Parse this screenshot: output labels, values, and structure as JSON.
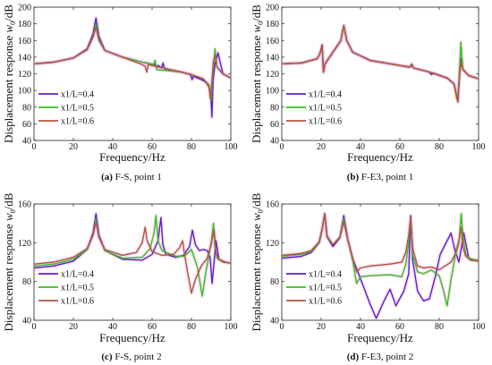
{
  "colors": {
    "s1": "#5b1fd0",
    "s2": "#35c11a",
    "s3": "#b5533b"
  },
  "chart_data": [
    {
      "type": "line",
      "caption_letter": "(a)",
      "caption_text": " F-S, point 1",
      "xlabel": "Frequency/Hz",
      "ylabel": "Displacement response",
      "ylabel_sym": "w",
      "ylabel_sub": "0",
      "ylabel_unit": "/dB",
      "xlim": [
        0,
        100
      ],
      "ylim": [
        40,
        200
      ],
      "xticks": [
        "0",
        "20",
        "40",
        "60",
        "80",
        "100"
      ],
      "yticks": [
        "40",
        "60",
        "80",
        "100",
        "120",
        "140",
        "160",
        "180",
        "200"
      ],
      "legend_position": "bottom-left",
      "series": [
        {
          "name": "x1/L=0.4",
          "color": "#5b1fd0",
          "x": [
            0,
            10,
            20,
            27,
            30,
            31.5,
            33,
            36,
            45,
            55,
            61.5,
            62.3,
            63,
            64.8,
            65.6,
            66.4,
            75,
            79.5,
            80.3,
            81,
            86,
            88.5,
            89.8,
            90.4,
            91,
            92,
            93.5,
            96,
            100
          ],
          "y": [
            132,
            134,
            139,
            150,
            168,
            187,
            165,
            148,
            140,
            134,
            131,
            128,
            130,
            127,
            133,
            126,
            122,
            119,
            113,
            117,
            112,
            108,
            95,
            68,
            112,
            132,
            145,
            120,
            115
          ]
        },
        {
          "name": "x1/L=0.5",
          "color": "#35c11a",
          "x": [
            0,
            10,
            20,
            27,
            30,
            31.5,
            33,
            36,
            45,
            55,
            60.8,
            61.5,
            62.3,
            75,
            80,
            86,
            89,
            90,
            90.6,
            91.3,
            92,
            93,
            96,
            100
          ],
          "y": [
            132,
            134,
            139,
            149,
            165,
            180,
            162,
            148,
            140,
            134,
            131,
            136,
            125,
            122,
            119,
            114,
            106,
            88,
            110,
            130,
            150,
            128,
            120,
            115
          ]
        },
        {
          "name": "x1/L=0.6",
          "color": "#b5533b",
          "x": [
            0,
            10,
            20,
            27,
            30,
            31.5,
            33,
            36,
            45,
            54,
            56.5,
            57.3,
            58,
            75,
            80,
            86,
            89,
            89.6,
            90.4,
            91.2,
            92,
            93,
            96,
            100
          ],
          "y": [
            132,
            134,
            139,
            149,
            164,
            176,
            160,
            148,
            140,
            132,
            129,
            122,
            131,
            122,
            119,
            114,
            104,
            90,
            112,
            135,
            142,
            128,
            120,
            115
          ]
        }
      ]
    },
    {
      "type": "line",
      "caption_letter": "(b)",
      "caption_text": " F-E3, point 1",
      "xlabel": "Frequency/Hz",
      "ylabel": "Displacement response",
      "ylabel_sym": "w",
      "ylabel_sub": "0",
      "ylabel_unit": "/dB",
      "xlim": [
        0,
        100
      ],
      "ylim": [
        40,
        200
      ],
      "xticks": [
        "0",
        "20",
        "40",
        "60",
        "80",
        "100"
      ],
      "yticks": [
        "40",
        "60",
        "80",
        "100",
        "120",
        "140",
        "160",
        "180",
        "200"
      ],
      "legend_position": "bottom-left",
      "series": [
        {
          "name": "x1/L=0.4",
          "color": "#5b1fd0",
          "x": [
            0,
            10,
            18,
            19.5,
            20.5,
            21.2,
            22,
            26,
            30,
            31.5,
            33,
            36,
            45,
            60,
            65,
            66,
            67,
            75,
            76,
            77,
            84,
            87.5,
            88.8,
            89.5,
            90.2,
            91,
            92,
            95,
            100
          ],
          "y": [
            132,
            133,
            138,
            145,
            155,
            122,
            132,
            146,
            160,
            178,
            160,
            146,
            136,
            130,
            128,
            130,
            127,
            122,
            119,
            121,
            115,
            108,
            95,
            88,
            115,
            138,
            125,
            118,
            114
          ]
        },
        {
          "name": "x1/L=0.5",
          "color": "#35c11a",
          "x": [
            0,
            10,
            18,
            19.5,
            20.5,
            21.2,
            22,
            26,
            30,
            31.5,
            33,
            36,
            45,
            60,
            65,
            66,
            67,
            75,
            84,
            87.5,
            88.8,
            89.5,
            90.2,
            91,
            92,
            95,
            100
          ],
          "y": [
            132,
            133,
            138,
            145,
            153,
            123,
            132,
            146,
            160,
            178,
            160,
            146,
            136,
            130,
            128,
            131,
            127,
            122,
            115,
            108,
            96,
            90,
            118,
            158,
            126,
            118,
            114
          ]
        },
        {
          "name": "x1/L=0.6",
          "color": "#b5533b",
          "x": [
            0,
            10,
            18,
            19.5,
            20.5,
            21.2,
            22,
            26,
            30,
            31.5,
            33,
            36,
            45,
            60,
            65,
            66,
            67,
            75,
            84,
            87.5,
            88.8,
            89.5,
            90.2,
            91,
            92,
            95,
            100
          ],
          "y": [
            132,
            133,
            138,
            145,
            154,
            122,
            132,
            146,
            160,
            178,
            160,
            146,
            136,
            130,
            128,
            132,
            127,
            122,
            115,
            108,
            92,
            86,
            112,
            135,
            125,
            118,
            114
          ]
        }
      ]
    },
    {
      "type": "line",
      "caption_letter": "(c)",
      "caption_text": " F-S, point 2",
      "xlabel": "Frequency/Hz",
      "ylabel": "Displacement response",
      "ylabel_sym": "w",
      "ylabel_sub": "0",
      "ylabel_unit": "/dB",
      "xlim": [
        0,
        100
      ],
      "ylim": [
        40,
        160
      ],
      "xticks": [
        "0",
        "20",
        "40",
        "60",
        "80",
        "100"
      ],
      "yticks": [
        "40",
        "80",
        "120",
        "160"
      ],
      "legend_position": "bottom-left",
      "series": [
        {
          "name": "x1/L=0.4",
          "color": "#5b1fd0",
          "x": [
            0,
            10,
            20,
            27,
            30,
            31.5,
            33,
            36,
            45,
            55,
            60,
            63,
            64.5,
            65.5,
            67,
            72,
            76,
            79,
            80.5,
            82,
            84,
            86,
            88,
            89.5,
            90.5,
            91.5,
            92.5,
            94,
            97,
            100
          ],
          "y": [
            94,
            96,
            101,
            113,
            130,
            150,
            128,
            112,
            103,
            102,
            108,
            122,
            146,
            118,
            108,
            105,
            107,
            116,
            133,
            118,
            112,
            113,
            112,
            105,
            78,
            100,
            122,
            103,
            100,
            99
          ]
        },
        {
          "name": "x1/L=0.5",
          "color": "#35c11a",
          "x": [
            0,
            10,
            20,
            27,
            30,
            31.5,
            33,
            36,
            45,
            55,
            59,
            61,
            62,
            63,
            65,
            72,
            76,
            78,
            80,
            83,
            85.5,
            87.5,
            89,
            90.2,
            91.2,
            92,
            93,
            96,
            100
          ],
          "y": [
            96,
            98,
            103,
            113,
            128,
            145,
            126,
            112,
            104,
            105,
            114,
            130,
            148,
            122,
            112,
            106,
            106,
            109,
            113,
            95,
            65,
            92,
            108,
            122,
            140,
            115,
            104,
            100,
            99
          ]
        },
        {
          "name": "x1/L=0.6",
          "color": "#b5533b",
          "x": [
            0,
            10,
            20,
            27,
            30,
            31.5,
            33,
            36,
            45,
            52,
            55,
            56.5,
            57.5,
            60,
            65,
            71,
            74,
            75.5,
            76.5,
            78,
            80,
            82,
            85,
            88,
            90,
            91.5,
            92.5,
            94,
            97,
            100
          ],
          "y": [
            98,
            100,
            105,
            114,
            128,
            141,
            126,
            113,
            107,
            110,
            120,
            136,
            122,
            111,
            107,
            108,
            115,
            122,
            108,
            90,
            68,
            82,
            96,
            104,
            118,
            133,
            110,
            103,
            100,
            99
          ]
        }
      ]
    },
    {
      "type": "line",
      "caption_letter": "(d)",
      "caption_text": " F-E3, point 2",
      "xlabel": "Frequency/Hz",
      "ylabel": "Displacement response",
      "ylabel_sym": "w",
      "ylabel_sub": "0",
      "ylabel_unit": "/dB",
      "xlim": [
        0,
        100
      ],
      "ylim": [
        40,
        160
      ],
      "xticks": [
        "0",
        "20",
        "40",
        "60",
        "80",
        "100"
      ],
      "yticks": [
        "40",
        "80",
        "120",
        "160"
      ],
      "legend_position": "bottom-left",
      "series": [
        {
          "name": "x1/L=0.4",
          "color": "#5b1fd0",
          "x": [
            0,
            10,
            15,
            19,
            20.5,
            21.8,
            23,
            26,
            29.5,
            31.5,
            33.5,
            36,
            39,
            42,
            45,
            48,
            52,
            55,
            58,
            62,
            64.5,
            65.5,
            66.5,
            69,
            72,
            75,
            78,
            80.5,
            83,
            86,
            88,
            90,
            91.5,
            92.5,
            95,
            100
          ],
          "y": [
            104,
            106,
            110,
            120,
            134,
            150,
            126,
            116,
            125,
            148,
            124,
            104,
            88,
            72,
            56,
            42,
            60,
            72,
            55,
            70,
            88,
            148,
            102,
            70,
            60,
            62,
            85,
            108,
            118,
            130,
            112,
            100,
            118,
            130,
            104,
            101
          ]
        },
        {
          "name": "x1/L=0.5",
          "color": "#35c11a",
          "x": [
            0,
            10,
            15,
            19,
            20.5,
            21.8,
            23,
            26,
            29.5,
            31.5,
            33.5,
            36,
            38,
            40,
            45,
            55,
            61,
            63,
            64.5,
            65.5,
            66.5,
            69,
            72,
            76,
            80,
            82,
            84,
            86,
            88,
            90,
            91.2,
            92,
            93.5,
            96,
            100
          ],
          "y": [
            106,
            108,
            111,
            120,
            134,
            150,
            126,
            118,
            126,
            145,
            124,
            102,
            78,
            85,
            86,
            87,
            85,
            98,
            120,
            146,
            108,
            90,
            88,
            92,
            86,
            72,
            55,
            82,
            105,
            120,
            150,
            128,
            108,
            103,
            102
          ]
        },
        {
          "name": "x1/L=0.6",
          "color": "#b5533b",
          "x": [
            0,
            10,
            15,
            19,
            20.5,
            21.8,
            23,
            26,
            29.5,
            31.5,
            33.5,
            36,
            38,
            40,
            45,
            55,
            61,
            63,
            64.5,
            65.5,
            66.5,
            69,
            72,
            76,
            80,
            83,
            86,
            88,
            90,
            91.2,
            92,
            93.5,
            96,
            100
          ],
          "y": [
            107,
            109,
            112,
            121,
            134,
            149,
            127,
            118,
            125,
            142,
            123,
            104,
            90,
            94,
            96,
            98,
            100,
            110,
            128,
            146,
            114,
            96,
            94,
            95,
            92,
            96,
            100,
            108,
            122,
            136,
            116,
            106,
            102,
            101
          ]
        }
      ]
    }
  ]
}
